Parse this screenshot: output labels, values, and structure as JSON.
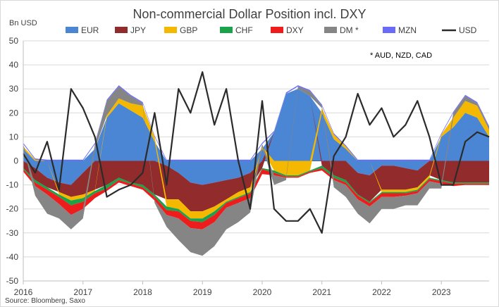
{
  "chart_data": {
    "type": "area",
    "title": "Non-commercial Dollar Position incl. DXY",
    "ylabel": "Bn USD",
    "ylim": [
      -50,
      50
    ],
    "yticks": [
      50,
      40,
      30,
      20,
      10,
      0,
      -10,
      -20,
      -30,
      -40,
      -50
    ],
    "xlim": [
      2016.0,
      2023.8
    ],
    "xticks": [
      2016,
      2017,
      2018,
      2019,
      2020,
      2021,
      2022,
      2023
    ],
    "grid": "horizontal",
    "legend_position": "top",
    "annotation": "* AUD, NZD, CAD",
    "source": "Source: Bloomberg, Saxo",
    "x": [
      2016.0,
      2016.2,
      2016.4,
      2016.6,
      2016.8,
      2017.0,
      2017.2,
      2017.4,
      2017.6,
      2017.8,
      2018.0,
      2018.2,
      2018.4,
      2018.6,
      2018.8,
      2019.0,
      2019.2,
      2019.4,
      2019.6,
      2019.8,
      2020.0,
      2020.2,
      2020.4,
      2020.6,
      2020.8,
      2021.0,
      2021.2,
      2021.4,
      2021.6,
      2021.8,
      2022.0,
      2022.2,
      2022.4,
      2022.6,
      2022.8,
      2023.0,
      2023.2,
      2023.4,
      2023.6,
      2023.8
    ],
    "series": [
      {
        "name": "EUR",
        "color": "#4a86d4",
        "values": [
          5,
          -3,
          -7,
          -9,
          -10,
          -5,
          5,
          18,
          24,
          21,
          18,
          8,
          -2,
          -5,
          -9,
          -10,
          -9,
          -8,
          -7,
          -5,
          5,
          12,
          28,
          30,
          27,
          20,
          9,
          5,
          -5,
          -6,
          -2,
          -2,
          -3,
          -4,
          0,
          10,
          14,
          20,
          18,
          10
        ]
      },
      {
        "name": "JPY",
        "color": "#922b2b",
        "values": [
          -3,
          -5,
          -4,
          -4,
          -5,
          -9,
          -12,
          -10,
          -7,
          -9,
          -10,
          -14,
          -14,
          -11,
          -12,
          -11,
          -10,
          -8,
          -6,
          -6,
          -3,
          0,
          0,
          0,
          0,
          -2,
          -6,
          -8,
          -9,
          -11,
          -10,
          -10,
          -9,
          -7,
          -6,
          -8,
          -9,
          -9,
          -9,
          -9
        ]
      },
      {
        "name": "GBP",
        "color": "#f5b800",
        "values": [
          1,
          0.5,
          0,
          -1,
          -1.5,
          -1.5,
          -0.5,
          1,
          2,
          3,
          5,
          2,
          -3,
          -4,
          -3,
          -3,
          -2,
          -1,
          -2,
          -2,
          1,
          -4,
          -6,
          -6,
          -4,
          2,
          2,
          1,
          0,
          0,
          -1,
          -1,
          -1,
          -1,
          -1,
          1,
          4,
          5,
          5,
          3
        ]
      },
      {
        "name": "CHF",
        "color": "#1aa34a",
        "values": [
          -0.5,
          -1,
          -1,
          -1,
          -2,
          -1.5,
          -1,
          -1.5,
          -1,
          -0.5,
          -1,
          -1,
          -1.5,
          -1,
          -1,
          -1.5,
          -1.5,
          -0.5,
          -0.5,
          -0.5,
          -0.5,
          -1,
          -0.5,
          -0.5,
          -0.5,
          -1,
          -1,
          -1,
          -0.5,
          -0.5,
          -0.5,
          -0.5,
          -0.5,
          -0.5,
          -0.5,
          -0.5,
          -0.5,
          -0.5,
          -0.5,
          -0.5
        ]
      },
      {
        "name": "DXY",
        "color": "#ee1c1c",
        "values": [
          -1,
          -1.5,
          -2,
          -3,
          -4,
          -3,
          -2,
          -1,
          -1,
          -1,
          -1,
          -1.5,
          -2,
          -3,
          -3,
          -3,
          -3,
          -2,
          -2,
          -2,
          -2,
          -1,
          -0.5,
          -0.5,
          -0.5,
          -1,
          -1,
          -1,
          -1.5,
          -1.5,
          -1.5,
          -1.5,
          -1,
          -1,
          -1,
          -1,
          -1,
          -0.5,
          -0.5,
          -0.5
        ]
      },
      {
        "name": "DM *",
        "color": "#858585",
        "values": [
          1,
          -4,
          -8,
          -6,
          -6,
          -4,
          2,
          6,
          5,
          3,
          1,
          -1,
          -5,
          -9,
          -10,
          -11,
          -10,
          -9,
          -8,
          -6,
          1,
          -4,
          -1,
          1,
          2,
          1,
          -3,
          -5,
          -6,
          -7,
          -5,
          -5,
          -4,
          -5,
          -3,
          -2,
          2,
          2,
          1,
          1
        ]
      },
      {
        "name": "MZN",
        "color": "#6b6bfa",
        "values": [
          0.5,
          0.5,
          0.5,
          0.5,
          0.5,
          0.5,
          0.5,
          0.5,
          0.5,
          0.5,
          0.5,
          0.5,
          0.5,
          0.5,
          0.5,
          0.5,
          0.5,
          0.5,
          0.5,
          0.5,
          0.5,
          0.5,
          0.5,
          0.5,
          0.5,
          0.5,
          0.5,
          0.5,
          0.5,
          0.5,
          0.5,
          0.5,
          0.5,
          0.5,
          0.5,
          0.5,
          0.5,
          0.5,
          0.5,
          0.5
        ]
      },
      {
        "name": "USD",
        "color": "#2b2b2b",
        "type": "line",
        "values": [
          3,
          -5,
          8,
          -12,
          30,
          22,
          10,
          -15,
          -12,
          -10,
          -5,
          20,
          -10,
          30,
          20,
          37,
          15,
          30,
          0,
          -20,
          25,
          -20,
          -25,
          -25,
          -20,
          -30,
          2,
          10,
          28,
          15,
          22,
          10,
          15,
          25,
          10,
          -10,
          -10,
          8,
          12,
          10
        ]
      }
    ]
  }
}
